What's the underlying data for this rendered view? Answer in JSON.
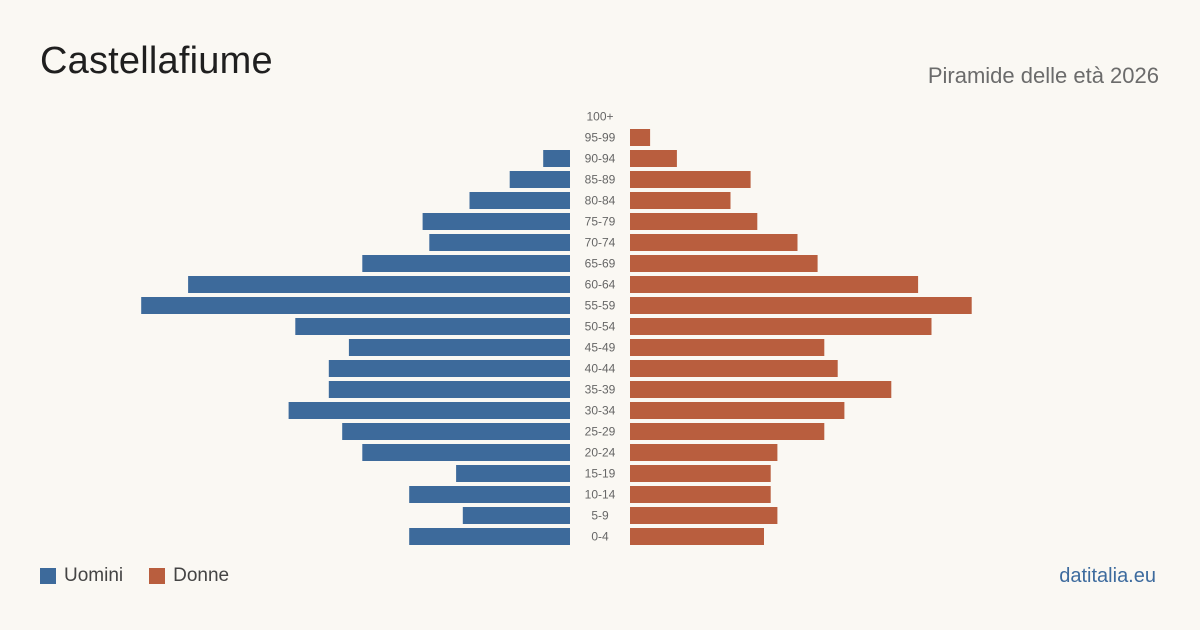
{
  "header": {
    "title": "Castellafiume",
    "subtitle": "Piramide delle età 2026"
  },
  "legend": {
    "men_label": "Uomini",
    "women_label": "Donne"
  },
  "footer": {
    "brand": "datitalia.eu"
  },
  "colors": {
    "men": "#3d6a9b",
    "women": "#b95e3e",
    "label": "#666666"
  },
  "chart_data": {
    "type": "bar",
    "orientation": "horizontal-pyramid",
    "categories": [
      "100+",
      "95-99",
      "90-94",
      "85-89",
      "80-84",
      "75-79",
      "70-74",
      "65-69",
      "60-64",
      "55-59",
      "50-54",
      "45-49",
      "40-44",
      "35-39",
      "30-34",
      "25-29",
      "20-24",
      "15-19",
      "10-14",
      "5-9",
      "0-4"
    ],
    "series": [
      {
        "name": "Uomini",
        "values": [
          0,
          0,
          4,
          9,
          15,
          22,
          21,
          31,
          57,
          64,
          41,
          33,
          36,
          36,
          42,
          34,
          31,
          17,
          24,
          16,
          24
        ]
      },
      {
        "name": "Donne",
        "values": [
          0,
          3,
          7,
          18,
          15,
          19,
          25,
          28,
          43,
          51,
          45,
          29,
          31,
          39,
          32,
          29,
          22,
          21,
          21,
          22,
          20
        ]
      }
    ],
    "xlabel": "",
    "ylabel": "",
    "grid": false,
    "legend_position": "bottom-left"
  }
}
